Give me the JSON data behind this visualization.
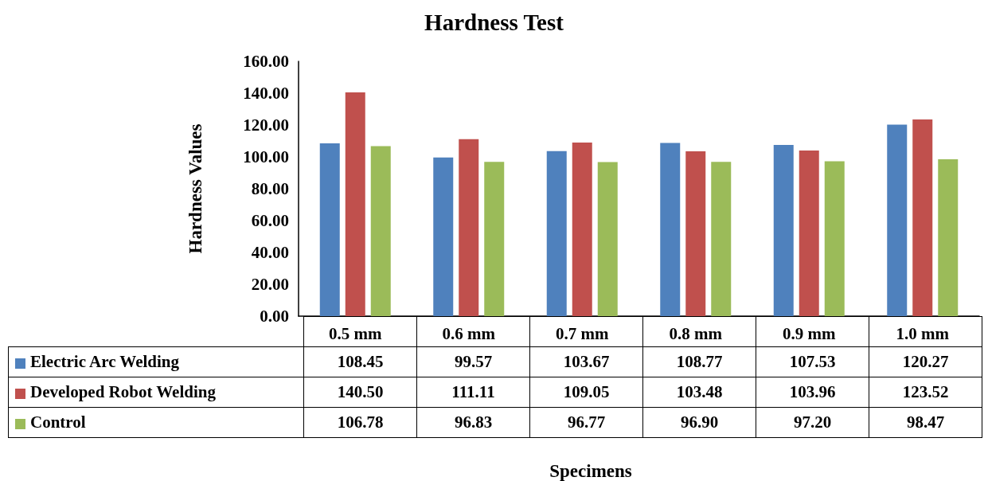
{
  "chart_data": {
    "type": "bar",
    "title": "Hardness Test",
    "annotations": [
      "Specimens"
    ],
    "ylabel": "Hardness Values",
    "categories": [
      "0.5 mm",
      "0.6 mm",
      "0.7 mm",
      "0.8 mm",
      "0.9 mm",
      "1.0 mm"
    ],
    "series": [
      {
        "name": "Electric Arc Welding",
        "color": "#4f81bd",
        "values": [
          108.45,
          99.57,
          103.67,
          108.77,
          107.53,
          120.27
        ],
        "value_labels": [
          "108.45",
          "99.57",
          "103.67",
          "108.77",
          "107.53",
          "120.27"
        ]
      },
      {
        "name": "Developed Robot Welding",
        "color": "#c0504d",
        "values": [
          140.5,
          111.11,
          109.05,
          103.48,
          103.96,
          123.52
        ],
        "value_labels": [
          "140.50",
          "111.11",
          "109.05",
          "103.48",
          "103.96",
          "123.52"
        ]
      },
      {
        "name": "Control",
        "color": "#9bbb59",
        "values": [
          106.78,
          96.83,
          96.77,
          96.9,
          97.2,
          98.47
        ],
        "value_labels": [
          "106.78",
          "96.83",
          "96.77",
          "96.90",
          "97.20",
          "98.47"
        ]
      }
    ],
    "ylim": [
      0,
      160
    ],
    "yticks": [
      {
        "value": 0,
        "label": "0.00"
      },
      {
        "value": 20,
        "label": "20.00"
      },
      {
        "value": 40,
        "label": "40.00"
      },
      {
        "value": 60,
        "label": "60.00"
      },
      {
        "value": 80,
        "label": "80.00"
      },
      {
        "value": 100,
        "label": "100.00"
      },
      {
        "value": 120,
        "label": "120.00"
      },
      {
        "value": 140,
        "label": "140.00"
      },
      {
        "value": 160,
        "label": "160.00"
      }
    ],
    "grid": false,
    "legend": "bottom left"
  }
}
